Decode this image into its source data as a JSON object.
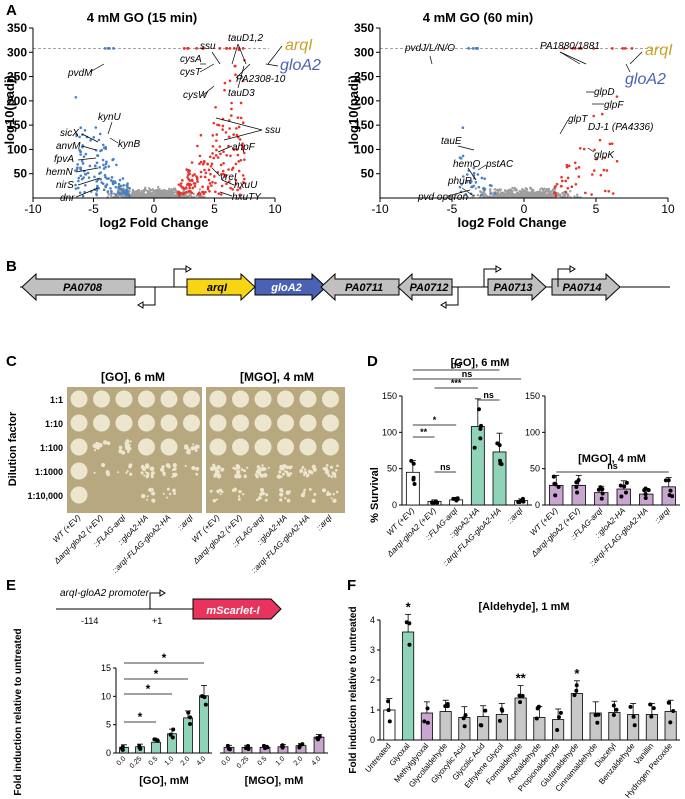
{
  "panel_letters": [
    "A",
    "B",
    "C",
    "D",
    "E",
    "F"
  ],
  "panel_a": {
    "left": {
      "title": "4 mM GO (15 min)",
      "xlabel": "log2 Fold Change",
      "ylabel": "-log10(padj)",
      "xticks": [
        "-10",
        "-5",
        "0",
        "5",
        "10"
      ],
      "yticks": [
        "50",
        "100",
        "150",
        "200",
        "250",
        "300",
        "350"
      ],
      "highlight": [
        "arqI",
        "gloA2"
      ],
      "labels": [
        "ssu",
        "tauD1,2",
        "cysA",
        "cysT",
        "PA2308-10",
        "tauD3",
        "cysW",
        "ssu",
        "ahpF",
        "vreI",
        "hxuU",
        "hxuTY",
        "pvdM",
        "kynU",
        "kynB",
        "sicX",
        "anvM",
        "fpvA",
        "hemN",
        "nirS",
        "dnr"
      ]
    },
    "right": {
      "title": "4 mM GO (60 min)",
      "xlabel": "log2 Fold Change",
      "ylabel": "-log10(padj)",
      "xticks": [
        "-10",
        "-5",
        "0",
        "5",
        "10"
      ],
      "yticks": [
        "50",
        "100",
        "150",
        "200",
        "250",
        "300",
        "350"
      ],
      "highlight": [
        "arqI",
        "gloA2"
      ],
      "labels": [
        "pvdJ/L/N/O",
        "PA1880/1881",
        "glpD",
        "glpF",
        "glpT",
        "DJ-1 (PA4336)",
        "glpK",
        "tauE",
        "pstAC",
        "hemO",
        "phuR",
        "pvd operon"
      ]
    },
    "colors": {
      "up": "#e8322b",
      "down": "#4a7fc1",
      "ns": "#9e9e9e",
      "arqI": "#c9a227",
      "gloA2": "#4a62b5"
    }
  },
  "panel_b": {
    "genes": [
      "PA0708",
      "arqI",
      "gloA2",
      "PA0711",
      "PA0712",
      "PA0713",
      "PA0714"
    ],
    "colors": {
      "arqI": "#f7d414",
      "gloA2": "#4a62b5",
      "other": "#c0c0c0"
    }
  },
  "panel_c": {
    "plate_titles": [
      "[GO], 6 mM",
      "[MGO], 4 mM"
    ],
    "ylabel": "Dilution factor",
    "dilutions": [
      "1:1",
      "1:10",
      "1:100",
      "1:1000",
      "1:10,000"
    ],
    "strains": [
      "WT (+EV)",
      "ΔarqI-gloA2 (+EV)",
      "::FLAG-arqI",
      "::gloA2-HA",
      "::arqI-FLAG-gloA2-HA",
      "::arqI"
    ]
  },
  "panel_d": {
    "ylabel": "% Survival",
    "sig_go": [
      "ns",
      "ns",
      "***",
      "*",
      "ns",
      "**",
      "ns"
    ],
    "sig_mgo": [
      "ns"
    ],
    "chart_data": [
      {
        "type": "bar",
        "title": "[GO], 6 mM",
        "categories": [
          "WT (+EV)",
          "ΔarqI-gloA2 (+EV)",
          "::FLAG-arqI",
          "::gloA2-HA",
          "::arqI-FLAG-gloA2-HA",
          "::arqI"
        ],
        "values": [
          45,
          5,
          7,
          108,
          73,
          6
        ],
        "ylim": [
          0,
          150
        ],
        "yticks": [
          "0",
          "50",
          "100",
          "150"
        ],
        "colors": [
          "#ffffff",
          "#ffffff",
          "#ffffff",
          "#8fd3b8",
          "#8fd3b8",
          "#ffffff"
        ]
      },
      {
        "type": "bar",
        "title": "[MGO], 4 mM",
        "categories": [
          "WT (+EV)",
          "ΔarqI-gloA2 (+EV)",
          "::FLAG-arqI",
          "::gloA2-HA",
          "::arqI-FLAG-gloA2-HA",
          "::arqI"
        ],
        "values": [
          27,
          27,
          17,
          22,
          15,
          25
        ],
        "ylim": [
          0,
          150
        ],
        "yticks": [
          "0",
          "50",
          "100",
          "150"
        ],
        "colors": [
          "#c9a6cf",
          "#c9a6cf",
          "#c9a6cf",
          "#c9a6cf",
          "#c9a6cf",
          "#c9a6cf"
        ]
      }
    ]
  },
  "panel_e": {
    "promoter_label": "arqI-gloA2 promoter",
    "pos_start": "-114",
    "pos_end": "+1",
    "reporter": "mScarlet-I",
    "ylabel": "Fold induction relative to untreated",
    "sig": [
      "*",
      "*",
      "*",
      "*"
    ],
    "chart_data": [
      {
        "type": "bar",
        "xlabel": "[GO], mM",
        "categories": [
          "0.0",
          "0.25",
          "0.5",
          "1.0",
          "2.0",
          "4.0"
        ],
        "values": [
          1.0,
          1.1,
          1.9,
          3.4,
          6.2,
          10.1
        ],
        "ylim": [
          0,
          15
        ],
        "yticks": [
          "0",
          "5",
          "10",
          "15"
        ],
        "color": "#8fd3b8"
      },
      {
        "type": "bar",
        "xlabel": "[MGO], mM",
        "categories": [
          "0.0",
          "0.25",
          "0.5",
          "1.0",
          "2.0",
          "4.0"
        ],
        "values": [
          1.0,
          1.0,
          1.0,
          1.1,
          1.3,
          2.8
        ],
        "ylim": [
          0,
          15
        ],
        "yticks": [
          "0",
          "5",
          "10",
          "15"
        ],
        "color": "#c9a6cf"
      }
    ]
  },
  "panel_f": {
    "ylabel": "Fold induction relative to untreated",
    "chart_data": {
      "type": "bar",
      "title": "[Aldehyde], 1 mM",
      "categories": [
        "Untreated",
        "Glyoxal",
        "Methylglyoxal",
        "Glycolaldehyde",
        "Glyoxylic Acid",
        "Glycolic Acid",
        "Ethylene Glycol",
        "Formaldehyde",
        "Acetaldehyde",
        "Propionaldehyde",
        "Glutaraldehyde",
        "Cinnamaldehyde",
        "Diacetyl",
        "Benzaldehyde",
        "Vanillin",
        "Hydrogen Peroxide"
      ],
      "values": [
        1.0,
        3.6,
        0.9,
        0.95,
        0.75,
        0.78,
        0.85,
        1.4,
        0.75,
        0.68,
        1.55,
        0.9,
        0.92,
        0.85,
        0.85,
        0.95
      ],
      "sig": [
        "",
        "*",
        "",
        "",
        "",
        "",
        "",
        "**",
        "",
        "",
        "*",
        "",
        "",
        "",
        "",
        ""
      ],
      "ylim": [
        0,
        4
      ],
      "yticks": [
        "0",
        "1",
        "2",
        "3",
        "4"
      ],
      "colors": [
        "#ffffff",
        "#8fd3b8",
        "#c9a6cf",
        "#c8c8c8",
        "#c8c8c8",
        "#c8c8c8",
        "#c8c8c8",
        "#c8c8c8",
        "#c8c8c8",
        "#c8c8c8",
        "#c8c8c8",
        "#c8c8c8",
        "#c8c8c8",
        "#c8c8c8",
        "#c8c8c8",
        "#c8c8c8"
      ]
    }
  }
}
